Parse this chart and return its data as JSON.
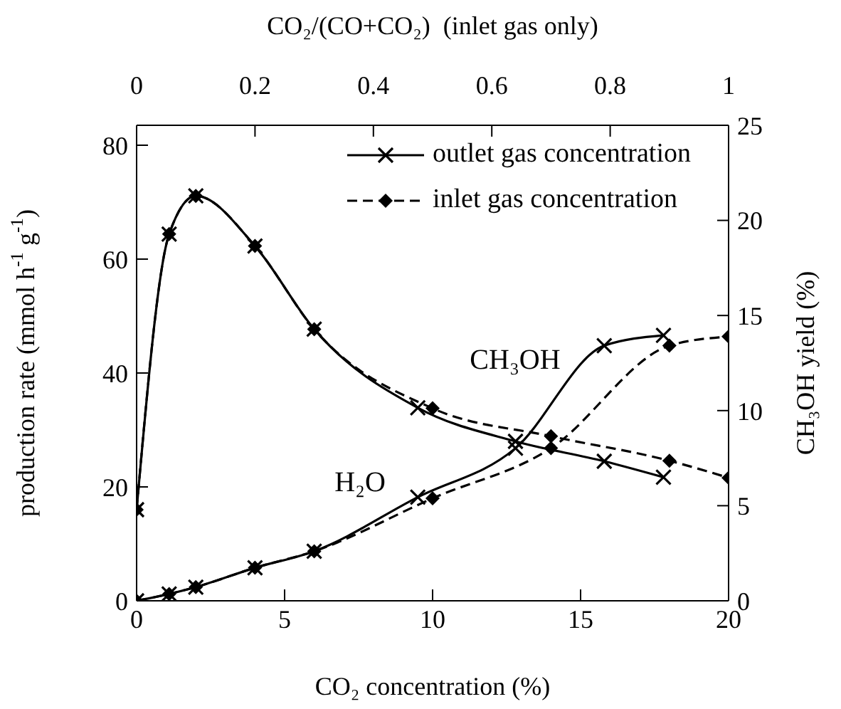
{
  "chart_data": {
    "type": "line",
    "xlabel": "CO₂ concentration (%)",
    "ylabel": "production rate (mmol h$^{-1}$ g$^{-1}$)",
    "y2label": "CH₃OH yield (%)",
    "x2label": "CO₂/(CO+CO₂)  (inlet gas only)",
    "xlim": [
      0,
      20
    ],
    "xticks": [
      0,
      5,
      10,
      15,
      20
    ],
    "ylim": [
      0,
      83.5
    ],
    "yticks": [
      0,
      20,
      40,
      60,
      80
    ],
    "y2lim": [
      0,
      25
    ],
    "y2ticks": [
      0,
      5,
      10,
      15,
      20,
      25
    ],
    "x2lim": [
      0,
      1
    ],
    "x2ticks": [
      0,
      0.2,
      0.4,
      0.6,
      0.8,
      1
    ],
    "grid": false,
    "legend": "top right",
    "annotations": [
      "CH₃OH",
      "H₂O"
    ],
    "series": [
      {
        "name": "outlet gas concentration",
        "color": "#000000",
        "marker": "cross",
        "line_style": "solid",
        "x": [
          0,
          1.1,
          2,
          4,
          6,
          9.5,
          12.8,
          15.8,
          17.8
        ],
        "values": [
          16,
          64.4,
          71.1,
          62.3,
          47.7,
          33.9,
          28,
          24.5,
          21.7
        ]
      },
      {
        "name": "inlet gas concentration",
        "color": "#000000",
        "marker": "diamond",
        "line_style": "dashed",
        "x": [
          0,
          1.1,
          2,
          4,
          6,
          10,
          14,
          18,
          20
        ],
        "values": [
          16,
          64.4,
          71.1,
          62.3,
          47.7,
          33.8,
          28.9,
          24.6,
          21.6
        ]
      },
      {
        "color": "#000000",
        "marker": "cross",
        "line_style": "solid",
        "x": [
          0,
          1.1,
          2,
          4,
          6,
          9.5,
          12.8,
          15.8,
          17.8
        ],
        "values": [
          0,
          1.2,
          2.4,
          5.8,
          8.7,
          18.2,
          26.8,
          44.8,
          46.6
        ]
      },
      {
        "color": "#000000",
        "marker": "diamond",
        "line_style": "dashed",
        "x": [
          0,
          1.1,
          2,
          4,
          6,
          10,
          14,
          18,
          20
        ],
        "values": [
          0,
          1.2,
          2.4,
          5.8,
          8.7,
          18,
          26.8,
          44.8,
          46.4
        ]
      }
    ]
  }
}
